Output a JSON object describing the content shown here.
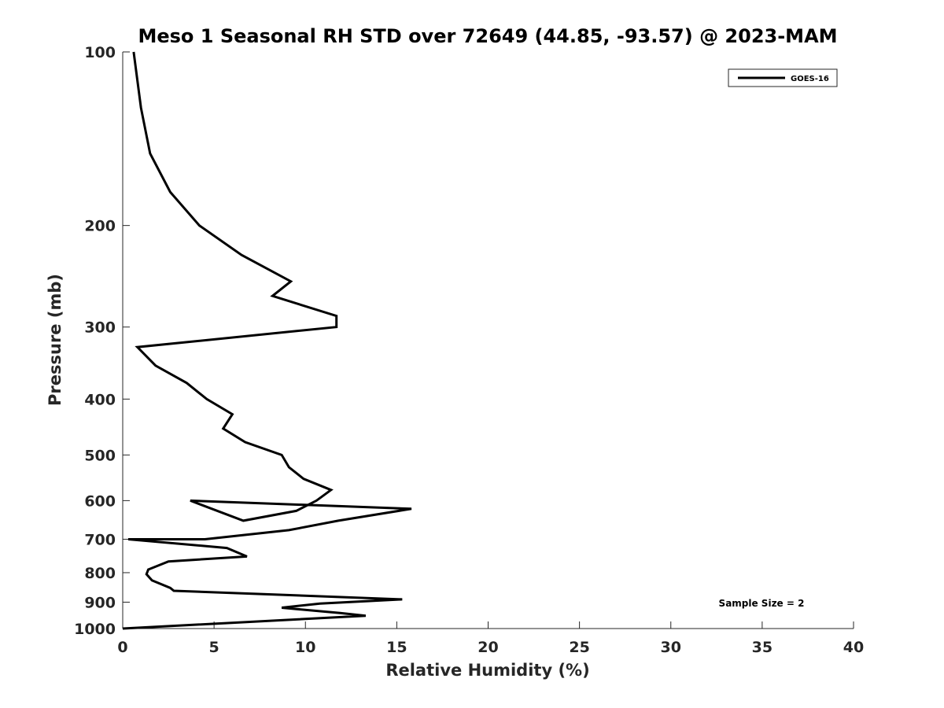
{
  "chart_data": {
    "type": "line",
    "title": "Meso 1 Seasonal RH STD over 72649 (44.85, -93.57) @ 2023-MAM",
    "xlabel": "Relative Humidity (%)",
    "ylabel": "Pressure (mb)",
    "xlim": [
      0,
      40
    ],
    "ylim": [
      100,
      1000
    ],
    "y_scale": "log",
    "y_direction": "reversed",
    "x_ticks": [
      0,
      5,
      10,
      15,
      20,
      25,
      30,
      35,
      40
    ],
    "y_ticks": [
      100,
      200,
      300,
      400,
      500,
      600,
      700,
      800,
      900,
      1000
    ],
    "grid": false,
    "legend_position": "top-right",
    "annotation": "Sample Size = 2",
    "series": [
      {
        "name": "GOES-16",
        "color": "#000000",
        "points": [
          [
            0.6,
            100
          ],
          [
            1.0,
            125
          ],
          [
            1.5,
            150
          ],
          [
            2.6,
            175
          ],
          [
            4.2,
            200
          ],
          [
            6.5,
            225
          ],
          [
            9.2,
            250
          ],
          [
            8.2,
            265
          ],
          [
            11.7,
            287
          ],
          [
            11.7,
            300
          ],
          [
            0.8,
            325
          ],
          [
            1.8,
            350
          ],
          [
            3.5,
            375
          ],
          [
            4.6,
            400
          ],
          [
            6.0,
            425
          ],
          [
            5.5,
            450
          ],
          [
            6.7,
            475
          ],
          [
            8.7,
            500
          ],
          [
            9.1,
            525
          ],
          [
            9.9,
            550
          ],
          [
            11.4,
            575
          ],
          [
            10.6,
            600
          ],
          [
            9.5,
            625
          ],
          [
            6.6,
            650
          ],
          [
            3.7,
            600
          ],
          [
            15.8,
            620
          ],
          [
            11.8,
            650
          ],
          [
            9.1,
            675
          ],
          [
            4.5,
            700
          ],
          [
            0.3,
            700
          ],
          [
            5.7,
            725
          ],
          [
            6.8,
            750
          ],
          [
            2.5,
            765
          ],
          [
            1.4,
            790
          ],
          [
            1.3,
            805
          ],
          [
            1.6,
            825
          ],
          [
            2.6,
            850
          ],
          [
            2.8,
            860
          ],
          [
            15.3,
            890
          ],
          [
            10.8,
            905
          ],
          [
            8.7,
            920
          ],
          [
            11.9,
            940
          ],
          [
            13.3,
            950
          ],
          [
            0,
            1000
          ]
        ]
      }
    ]
  }
}
